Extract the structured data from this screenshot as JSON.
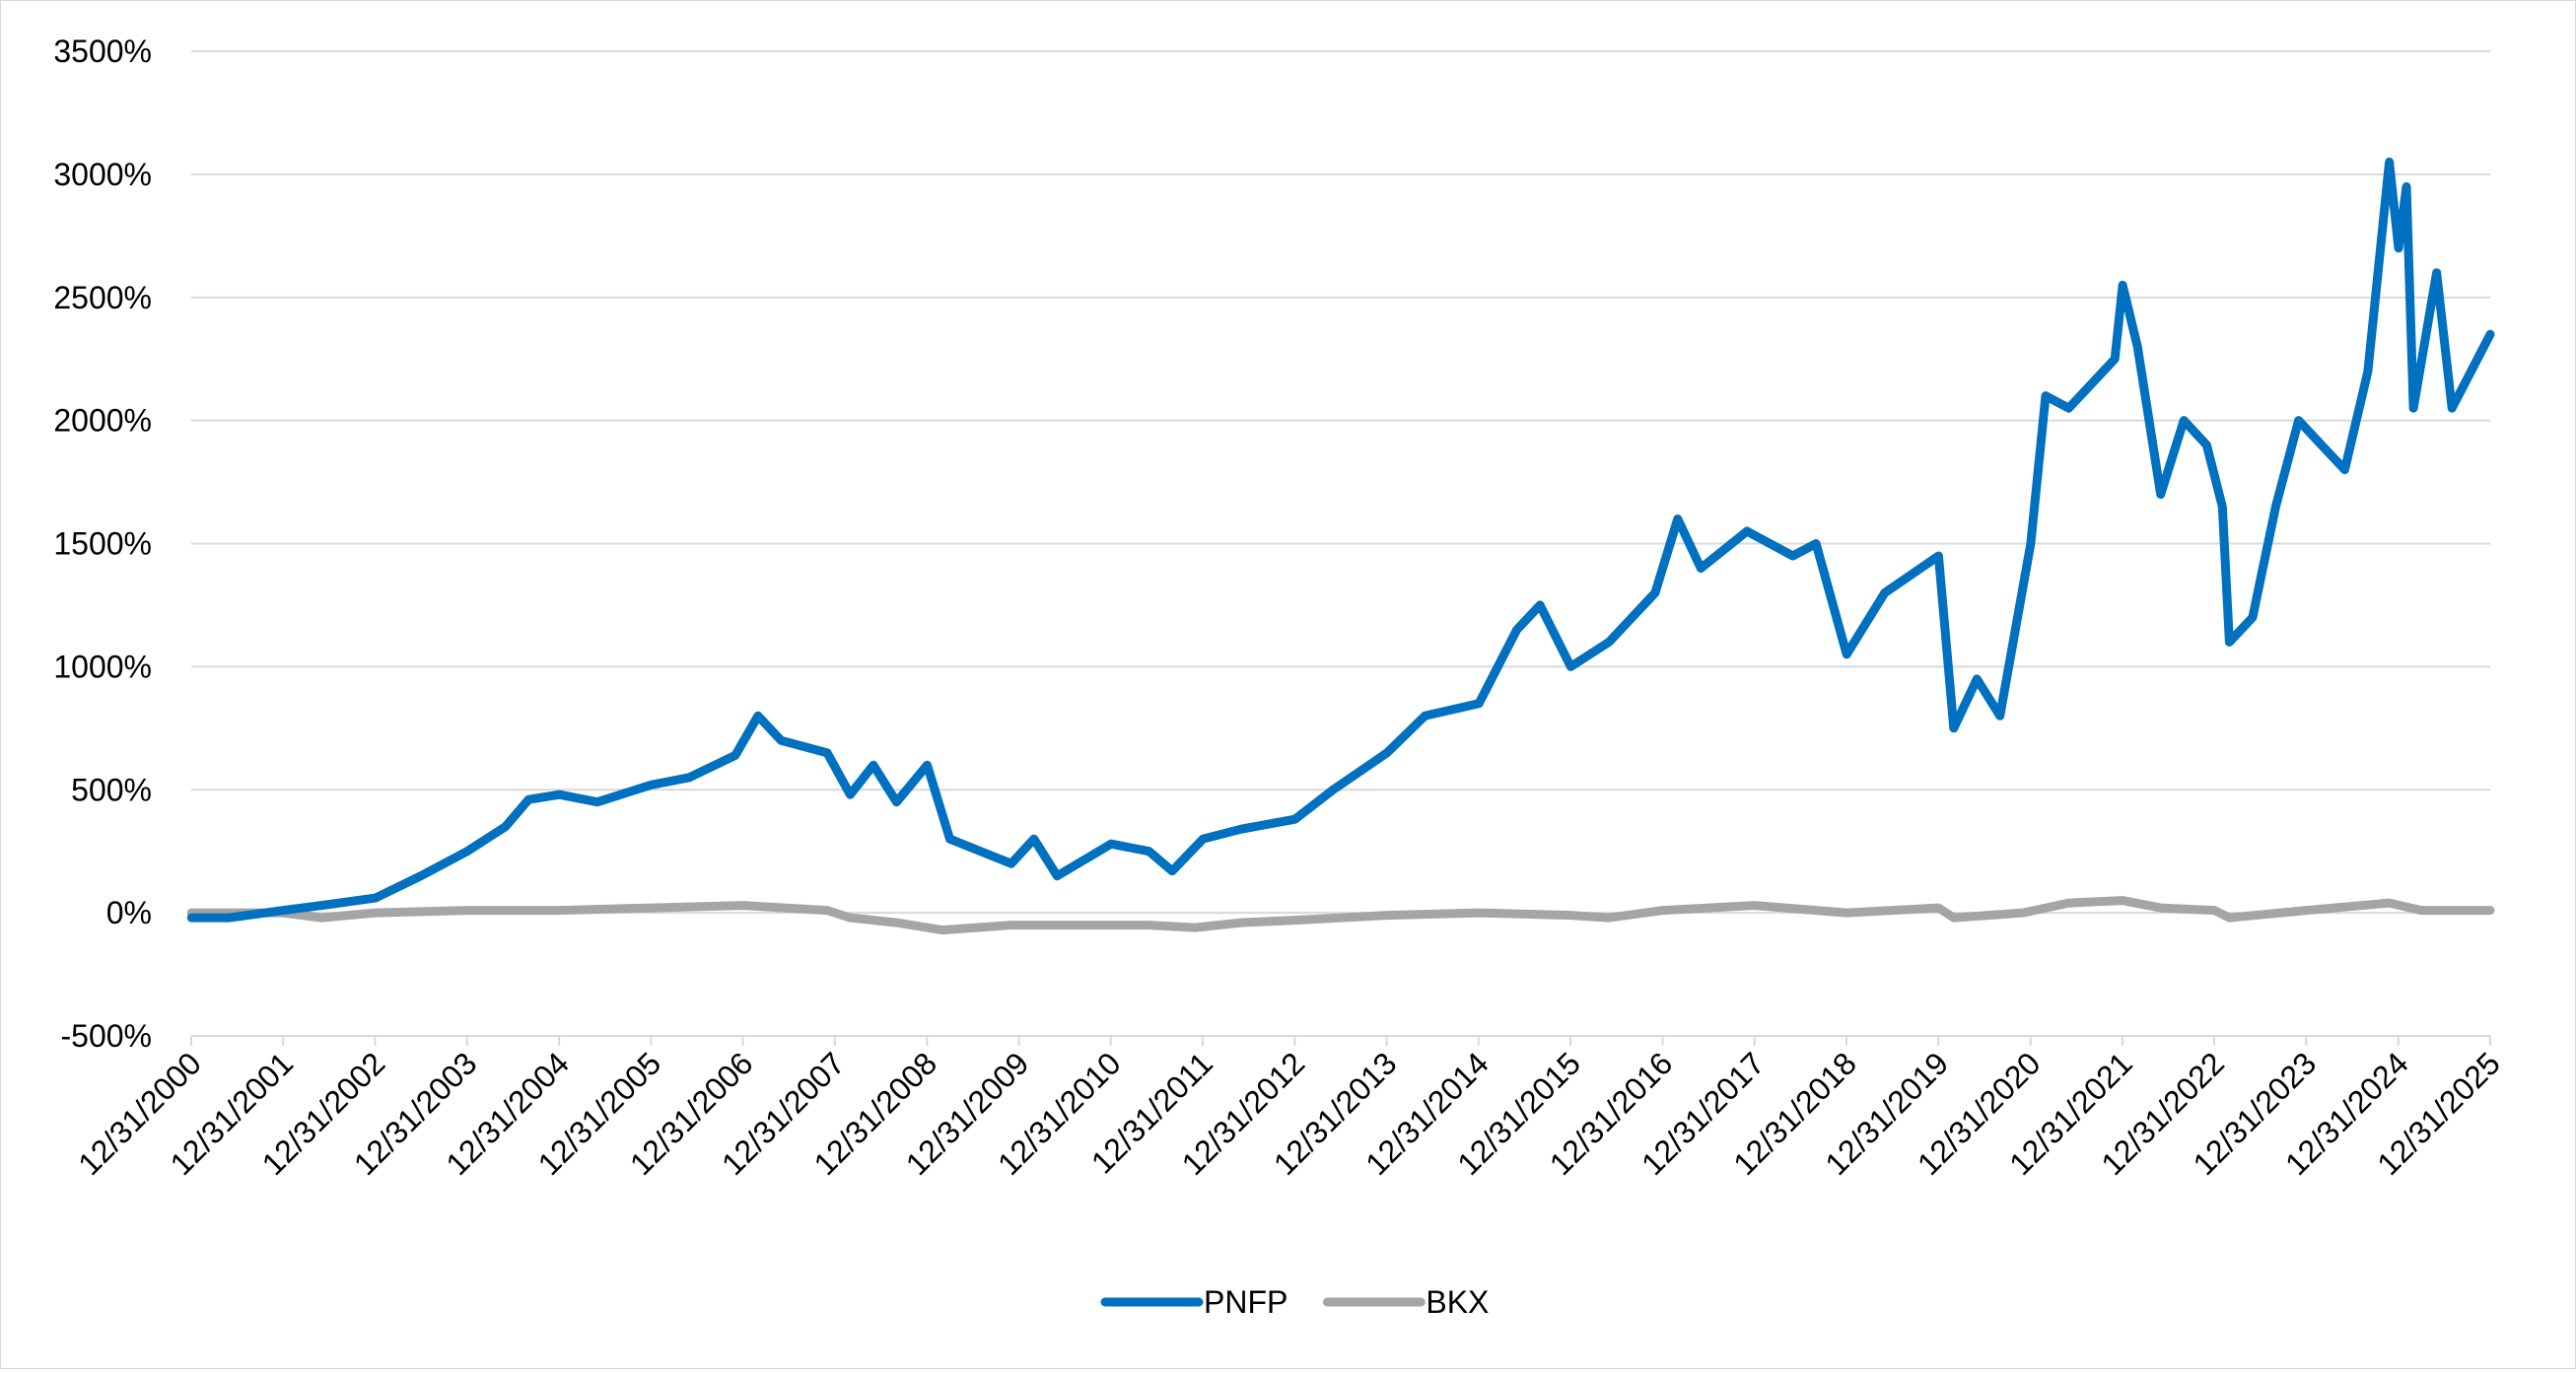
{
  "chart_data": {
    "type": "line",
    "title": "",
    "xlabel": "",
    "ylabel": "",
    "ylim": [
      -500,
      3500
    ],
    "y_ticks": [
      "3500%",
      "3000%",
      "2500%",
      "2000%",
      "1500%",
      "1000%",
      "500%",
      "0%",
      "-500%"
    ],
    "y_tick_values": [
      3500,
      3000,
      2500,
      2000,
      1500,
      1000,
      500,
      0,
      -500
    ],
    "x_ticks": [
      "12/31/2000",
      "12/31/2001",
      "12/31/2002",
      "12/31/2003",
      "12/31/2004",
      "12/31/2005",
      "12/31/2006",
      "12/31/2007",
      "12/31/2008",
      "12/31/2009",
      "12/31/2010",
      "12/31/2011",
      "12/31/2012",
      "12/31/2013",
      "12/31/2014",
      "12/31/2015",
      "12/31/2016",
      "12/31/2017",
      "12/31/2018",
      "12/31/2019",
      "12/31/2020",
      "12/31/2021",
      "12/31/2022",
      "12/31/2023",
      "12/31/2024",
      "12/31/2025"
    ],
    "xlim": [
      "12/31/2000",
      "12/31/2025"
    ],
    "grid": "horizontal",
    "legend_position": "bottom",
    "series": [
      {
        "name": "PNFP",
        "color": "#0070C0",
        "points": [
          [
            "2001-01-01",
            -20
          ],
          [
            "2001-06-01",
            -20
          ],
          [
            "2002-01-01",
            10
          ],
          [
            "2002-06-01",
            30
          ],
          [
            "2003-01-01",
            60
          ],
          [
            "2003-07-01",
            150
          ],
          [
            "2004-01-01",
            250
          ],
          [
            "2004-06-01",
            350
          ],
          [
            "2004-09-01",
            460
          ],
          [
            "2005-01-01",
            480
          ],
          [
            "2005-06-01",
            450
          ],
          [
            "2006-01-01",
            520
          ],
          [
            "2006-06-01",
            550
          ],
          [
            "2006-12-01",
            640
          ],
          [
            "2007-03-01",
            800
          ],
          [
            "2007-06-01",
            700
          ],
          [
            "2007-12-01",
            650
          ],
          [
            "2008-03-01",
            480
          ],
          [
            "2008-06-01",
            600
          ],
          [
            "2008-09-01",
            450
          ],
          [
            "2009-01-01",
            600
          ],
          [
            "2009-04-01",
            300
          ],
          [
            "2009-12-01",
            200
          ],
          [
            "2010-03-01",
            300
          ],
          [
            "2010-06-01",
            150
          ],
          [
            "2011-01-01",
            280
          ],
          [
            "2011-06-01",
            250
          ],
          [
            "2011-09-01",
            170
          ],
          [
            "2012-01-01",
            300
          ],
          [
            "2012-06-01",
            340
          ],
          [
            "2013-01-01",
            380
          ],
          [
            "2013-06-01",
            500
          ],
          [
            "2014-01-01",
            650
          ],
          [
            "2014-06-01",
            800
          ],
          [
            "2015-01-01",
            850
          ],
          [
            "2015-06-01",
            1150
          ],
          [
            "2015-09-01",
            1250
          ],
          [
            "2016-01-01",
            1000
          ],
          [
            "2016-06-01",
            1100
          ],
          [
            "2016-12-01",
            1300
          ],
          [
            "2017-03-01",
            1600
          ],
          [
            "2017-06-01",
            1400
          ],
          [
            "2017-12-01",
            1550
          ],
          [
            "2018-06-01",
            1450
          ],
          [
            "2018-09-01",
            1500
          ],
          [
            "2019-01-01",
            1050
          ],
          [
            "2019-06-01",
            1300
          ],
          [
            "2020-01-01",
            1450
          ],
          [
            "2020-03-01",
            750
          ],
          [
            "2020-06-01",
            950
          ],
          [
            "2020-09-01",
            800
          ],
          [
            "2021-01-01",
            1500
          ],
          [
            "2021-03-01",
            2100
          ],
          [
            "2021-06-01",
            2050
          ],
          [
            "2021-12-01",
            2250
          ],
          [
            "2022-01-01",
            2550
          ],
          [
            "2022-03-01",
            2300
          ],
          [
            "2022-06-01",
            1700
          ],
          [
            "2022-09-01",
            2000
          ],
          [
            "2022-12-01",
            1900
          ],
          [
            "2023-02-01",
            1650
          ],
          [
            "2023-03-01",
            1100
          ],
          [
            "2023-06-01",
            1200
          ],
          [
            "2023-09-01",
            1650
          ],
          [
            "2023-12-01",
            2000
          ],
          [
            "2024-03-01",
            1900
          ],
          [
            "2024-06-01",
            1800
          ],
          [
            "2024-09-01",
            2200
          ],
          [
            "2024-11-25",
            3050
          ],
          [
            "2025-01-01",
            2700
          ],
          [
            "2025-02-01",
            2950
          ],
          [
            "2025-03-01",
            2050
          ],
          [
            "2025-06-01",
            2600
          ],
          [
            "2025-08-01",
            2050
          ],
          [
            "2025-12-31",
            2350
          ]
        ]
      },
      {
        "name": "BKX",
        "color": "#A5A5A5",
        "points": [
          [
            "2001-01-01",
            0
          ],
          [
            "2002-01-01",
            0
          ],
          [
            "2002-06-01",
            -20
          ],
          [
            "2003-01-01",
            0
          ],
          [
            "2004-01-01",
            10
          ],
          [
            "2005-01-01",
            10
          ],
          [
            "2006-01-01",
            20
          ],
          [
            "2007-01-01",
            30
          ],
          [
            "2007-12-01",
            10
          ],
          [
            "2008-03-01",
            -20
          ],
          [
            "2008-09-01",
            -40
          ],
          [
            "2009-03-01",
            -70
          ],
          [
            "2009-12-01",
            -50
          ],
          [
            "2010-06-01",
            -50
          ],
          [
            "2011-06-01",
            -50
          ],
          [
            "2011-12-01",
            -60
          ],
          [
            "2012-06-01",
            -40
          ],
          [
            "2013-01-01",
            -30
          ],
          [
            "2014-01-01",
            -10
          ],
          [
            "2015-01-01",
            0
          ],
          [
            "2016-01-01",
            -10
          ],
          [
            "2016-06-01",
            -20
          ],
          [
            "2017-01-01",
            10
          ],
          [
            "2018-01-01",
            30
          ],
          [
            "2019-01-01",
            0
          ],
          [
            "2020-01-01",
            20
          ],
          [
            "2020-03-01",
            -20
          ],
          [
            "2020-12-01",
            0
          ],
          [
            "2021-06-01",
            40
          ],
          [
            "2022-01-01",
            50
          ],
          [
            "2022-06-01",
            20
          ],
          [
            "2023-01-01",
            10
          ],
          [
            "2023-03-01",
            -20
          ],
          [
            "2024-01-01",
            10
          ],
          [
            "2024-11-25",
            40
          ],
          [
            "2025-04-01",
            10
          ],
          [
            "2025-12-31",
            10
          ]
        ]
      }
    ]
  }
}
